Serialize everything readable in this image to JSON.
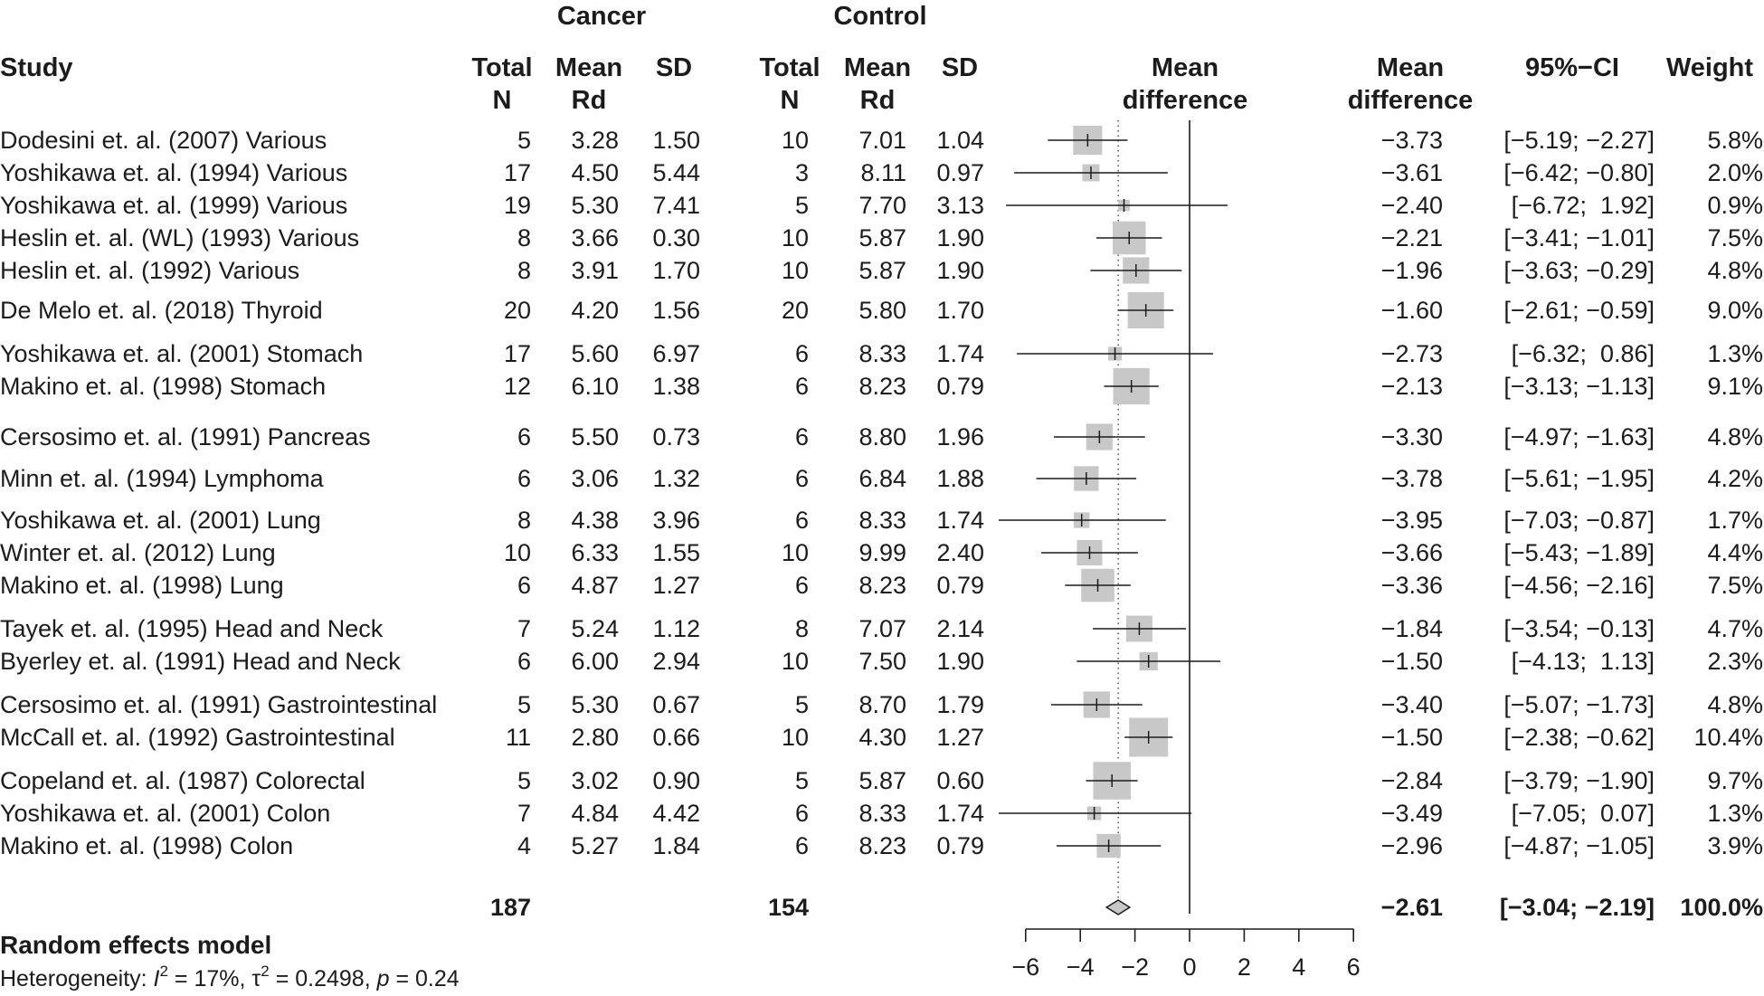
{
  "headers": {
    "cancer": "Cancer",
    "control": "Control",
    "study": "Study",
    "total_n": [
      "Total",
      "N"
    ],
    "mean_rd": [
      "Mean",
      "Rd"
    ],
    "sd": "SD",
    "plot_col": [
      "Mean",
      "difference"
    ],
    "md_col": [
      "Mean",
      "difference"
    ],
    "ci": "95%−CI",
    "weight": "Weight"
  },
  "chart_data": {
    "type": "forest",
    "xlim": [
      -6,
      6
    ],
    "x_ticks": [
      "−6",
      "−4",
      "−2",
      "0",
      "2",
      "4",
      "6"
    ],
    "reference_line": 0,
    "pooled_line": -2.61,
    "studies": [
      {
        "study": "Dodesini et. al. (2007) Various",
        "ca_n": "5",
        "ca_mean": "3.28",
        "ca_sd": "1.50",
        "co_n": "10",
        "co_mean": "7.01",
        "co_sd": "1.04",
        "md_text": "−3.73",
        "ci_text": "[−5.19; −2.27]",
        "weight_text": "5.8%",
        "md": -3.73,
        "lo": -5.19,
        "hi": -2.27,
        "weight": 5.8
      },
      {
        "study": "Yoshikawa et. al. (1994) Various",
        "ca_n": "17",
        "ca_mean": "4.50",
        "ca_sd": "5.44",
        "co_n": "3",
        "co_mean": "8.11",
        "co_sd": "0.97",
        "md_text": "−3.61",
        "ci_text": "[−6.42; −0.80]",
        "weight_text": "2.0%",
        "md": -3.61,
        "lo": -6.42,
        "hi": -0.8,
        "weight": 2.0
      },
      {
        "study": "Yoshikawa et. al. (1999) Various",
        "ca_n": "19",
        "ca_mean": "5.30",
        "ca_sd": "7.41",
        "co_n": "5",
        "co_mean": "7.70",
        "co_sd": "3.13",
        "md_text": "−2.40",
        "ci_text": "[−6.72;  1.92]",
        "weight_text": "0.9%",
        "md": -2.4,
        "lo": -6.72,
        "hi": 1.92,
        "weight": 0.9
      },
      {
        "study": "Heslin et. al. (WL) (1993) Various",
        "ca_n": "8",
        "ca_mean": "3.66",
        "ca_sd": "0.30",
        "co_n": "10",
        "co_mean": "5.87",
        "co_sd": "1.90",
        "md_text": "−2.21",
        "ci_text": "[−3.41; −1.01]",
        "weight_text": "7.5%",
        "md": -2.21,
        "lo": -3.41,
        "hi": -1.01,
        "weight": 7.5
      },
      {
        "study": "Heslin et. al. (1992) Various",
        "ca_n": "8",
        "ca_mean": "3.91",
        "ca_sd": "1.70",
        "co_n": "10",
        "co_mean": "5.87",
        "co_sd": "1.90",
        "md_text": "−1.96",
        "ci_text": "[−3.63; −0.29]",
        "weight_text": "4.8%",
        "md": -1.96,
        "lo": -3.63,
        "hi": -0.29,
        "weight": 4.8
      },
      {
        "study": "De Melo et. al. (2018) Thyroid",
        "ca_n": "20",
        "ca_mean": "4.20",
        "ca_sd": "1.56",
        "co_n": "20",
        "co_mean": "5.80",
        "co_sd": "1.70",
        "md_text": "−1.60",
        "ci_text": "[−2.61; −0.59]",
        "weight_text": "9.0%",
        "md": -1.6,
        "lo": -2.61,
        "hi": -0.59,
        "weight": 9.0
      },
      {
        "study": "Yoshikawa et. al. (2001) Stomach",
        "ca_n": "17",
        "ca_mean": "5.60",
        "ca_sd": "6.97",
        "co_n": "6",
        "co_mean": "8.33",
        "co_sd": "1.74",
        "md_text": "−2.73",
        "ci_text": "[−6.32;  0.86]",
        "weight_text": "1.3%",
        "md": -2.73,
        "lo": -6.32,
        "hi": 0.86,
        "weight": 1.3
      },
      {
        "study": "Makino et. al. (1998) Stomach",
        "ca_n": "12",
        "ca_mean": "6.10",
        "ca_sd": "1.38",
        "co_n": "6",
        "co_mean": "8.23",
        "co_sd": "0.79",
        "md_text": "−2.13",
        "ci_text": "[−3.13; −1.13]",
        "weight_text": "9.1%",
        "md": -2.13,
        "lo": -3.13,
        "hi": -1.13,
        "weight": 9.1
      },
      {
        "study": "Cersosimo et. al. (1991) Pancreas",
        "ca_n": "6",
        "ca_mean": "5.50",
        "ca_sd": "0.73",
        "co_n": "6",
        "co_mean": "8.80",
        "co_sd": "1.96",
        "md_text": "−3.30",
        "ci_text": "[−4.97; −1.63]",
        "weight_text": "4.8%",
        "md": -3.3,
        "lo": -4.97,
        "hi": -1.63,
        "weight": 4.8
      },
      {
        "study": "Minn et. al. (1994) Lymphoma",
        "ca_n": "6",
        "ca_mean": "3.06",
        "ca_sd": "1.32",
        "co_n": "6",
        "co_mean": "6.84",
        "co_sd": "1.88",
        "md_text": "−3.78",
        "ci_text": "[−5.61; −1.95]",
        "weight_text": "4.2%",
        "md": -3.78,
        "lo": -5.61,
        "hi": -1.95,
        "weight": 4.2
      },
      {
        "study": "Yoshikawa et. al. (2001) Lung",
        "ca_n": "8",
        "ca_mean": "4.38",
        "ca_sd": "3.96",
        "co_n": "6",
        "co_mean": "8.33",
        "co_sd": "1.74",
        "md_text": "−3.95",
        "ci_text": "[−7.03; −0.87]",
        "weight_text": "1.7%",
        "md": -3.95,
        "lo": -7.03,
        "hi": -0.87,
        "weight": 1.7
      },
      {
        "study": "Winter et. al. (2012) Lung",
        "ca_n": "10",
        "ca_mean": "6.33",
        "ca_sd": "1.55",
        "co_n": "10",
        "co_mean": "9.99",
        "co_sd": "2.40",
        "md_text": "−3.66",
        "ci_text": "[−5.43; −1.89]",
        "weight_text": "4.4%",
        "md": -3.66,
        "lo": -5.43,
        "hi": -1.89,
        "weight": 4.4
      },
      {
        "study": "Makino et. al. (1998) Lung",
        "ca_n": "6",
        "ca_mean": "4.87",
        "ca_sd": "1.27",
        "co_n": "6",
        "co_mean": "8.23",
        "co_sd": "0.79",
        "md_text": "−3.36",
        "ci_text": "[−4.56; −2.16]",
        "weight_text": "7.5%",
        "md": -3.36,
        "lo": -4.56,
        "hi": -2.16,
        "weight": 7.5
      },
      {
        "study": "Tayek et. al. (1995) Head and Neck",
        "ca_n": "7",
        "ca_mean": "5.24",
        "ca_sd": "1.12",
        "co_n": "8",
        "co_mean": "7.07",
        "co_sd": "2.14",
        "md_text": "−1.84",
        "ci_text": "[−3.54; −0.13]",
        "weight_text": "4.7%",
        "md": -1.84,
        "lo": -3.54,
        "hi": -0.13,
        "weight": 4.7
      },
      {
        "study": "Byerley et. al. (1991) Head and Neck",
        "ca_n": "6",
        "ca_mean": "6.00",
        "ca_sd": "2.94",
        "co_n": "10",
        "co_mean": "7.50",
        "co_sd": "1.90",
        "md_text": "−1.50",
        "ci_text": "[−4.13;  1.13]",
        "weight_text": "2.3%",
        "md": -1.5,
        "lo": -4.13,
        "hi": 1.13,
        "weight": 2.3
      },
      {
        "study": "Cersosimo et. al. (1991) Gastrointestinal",
        "ca_n": "5",
        "ca_mean": "5.30",
        "ca_sd": "0.67",
        "co_n": "5",
        "co_mean": "8.70",
        "co_sd": "1.79",
        "md_text": "−3.40",
        "ci_text": "[−5.07; −1.73]",
        "weight_text": "4.8%",
        "md": -3.4,
        "lo": -5.07,
        "hi": -1.73,
        "weight": 4.8
      },
      {
        "study": "McCall et. al. (1992) Gastrointestinal",
        "ca_n": "11",
        "ca_mean": "2.80",
        "ca_sd": "0.66",
        "co_n": "10",
        "co_mean": "4.30",
        "co_sd": "1.27",
        "md_text": "−1.50",
        "ci_text": "[−2.38; −0.62]",
        "weight_text": "10.4%",
        "md": -1.5,
        "lo": -2.38,
        "hi": -0.62,
        "weight": 10.4
      },
      {
        "study": "Copeland et. al. (1987) Colorectal",
        "ca_n": "5",
        "ca_mean": "3.02",
        "ca_sd": "0.90",
        "co_n": "5",
        "co_mean": "5.87",
        "co_sd": "0.60",
        "md_text": "−2.84",
        "ci_text": "[−3.79; −1.90]",
        "weight_text": "9.7%",
        "md": -2.84,
        "lo": -3.79,
        "hi": -1.9,
        "weight": 9.7
      },
      {
        "study": "Yoshikawa et. al. (2001) Colon",
        "ca_n": "7",
        "ca_mean": "4.84",
        "ca_sd": "4.42",
        "co_n": "6",
        "co_mean": "8.33",
        "co_sd": "1.74",
        "md_text": "−3.49",
        "ci_text": "[−7.05;  0.07]",
        "weight_text": "1.3%",
        "md": -3.49,
        "lo": -7.05,
        "hi": 0.07,
        "weight": 1.3
      },
      {
        "study": "Makino et. al. (1998) Colon",
        "ca_n": "4",
        "ca_mean": "5.27",
        "ca_sd": "1.84",
        "co_n": "6",
        "co_mean": "8.23",
        "co_sd": "0.79",
        "md_text": "−2.96",
        "ci_text": "[−4.87; −1.05]",
        "weight_text": "3.9%",
        "md": -2.96,
        "lo": -4.87,
        "hi": -1.05,
        "weight": 3.9
      }
    ],
    "overall": {
      "label": "Random effects model",
      "ca_total": "187",
      "co_total": "154",
      "md_text": "−2.61",
      "ci_text": "[−3.04; −2.19]",
      "weight_text": "100.0%",
      "md": -2.61,
      "lo": -3.04,
      "hi": -2.19
    },
    "heterogeneity": {
      "prefix": "Heterogeneity: ",
      "i2_sym": "I",
      "i2_val": " = 17%, ",
      "tau_sym": "τ",
      "tau_val": " = 0.2498, ",
      "p_sym": "p",
      "p_val": " = 0.24"
    }
  }
}
